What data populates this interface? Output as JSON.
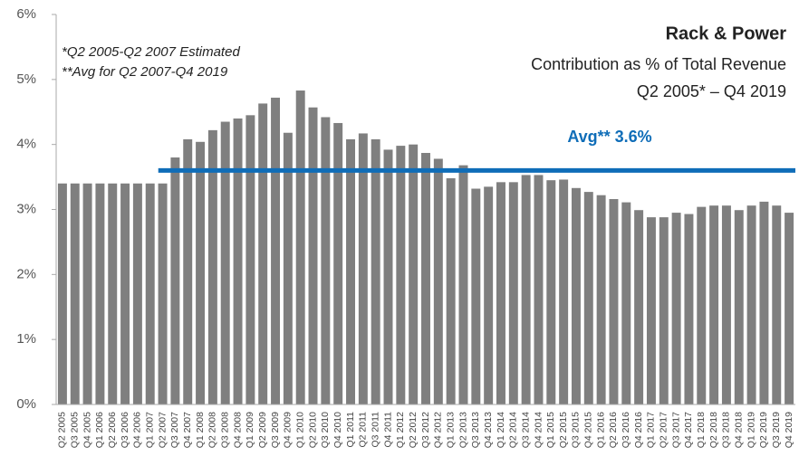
{
  "chart_data": {
    "type": "bar",
    "title": "Rack & Power",
    "subtitle": [
      "Contribution as % of Total Revenue",
      "Q2 2005* – Q4 2019"
    ],
    "annotations": [
      "*Q2 2005-Q2 2007 Estimated",
      "**Avg for Q2 2007-Q4 2019"
    ],
    "categories": [
      "Q2 2005",
      "Q3 2005",
      "Q4 2005",
      "Q1 2006",
      "Q2 2006",
      "Q3 2006",
      "Q4 2006",
      "Q1 2007",
      "Q2 2007",
      "Q3 2007",
      "Q4 2007",
      "Q1 2008",
      "Q2 2008",
      "Q3 2008",
      "Q4 2008",
      "Q1 2009",
      "Q2 2009",
      "Q3 2009",
      "Q4 2009",
      "Q1 2010",
      "Q2 2010",
      "Q3 2010",
      "Q4 2010",
      "Q1 2011",
      "Q2 2011",
      "Q3 2011",
      "Q4 2011",
      "Q1 2012",
      "Q2 2012",
      "Q3 2012",
      "Q4 2012",
      "Q1 2013",
      "Q2 2013",
      "Q3 2013",
      "Q4 2013",
      "Q1 2014",
      "Q2 2014",
      "Q3 2014",
      "Q4 2014",
      "Q1 2015",
      "Q2 2015",
      "Q3 2015",
      "Q4 2015",
      "Q1 2016",
      "Q2 2016",
      "Q3 2016",
      "Q4 2016",
      "Q1 2017",
      "Q2 2017",
      "Q3 2017",
      "Q4 2017",
      "Q1 2018",
      "Q2 2018",
      "Q3 2018",
      "Q4 2018",
      "Q1 2019",
      "Q2 2019",
      "Q3 2019",
      "Q4 2019"
    ],
    "values": [
      3.4,
      3.4,
      3.4,
      3.4,
      3.4,
      3.4,
      3.4,
      3.4,
      3.4,
      3.8,
      4.08,
      4.04,
      4.22,
      4.35,
      4.4,
      4.45,
      4.63,
      4.72,
      4.18,
      4.83,
      4.57,
      4.42,
      4.33,
      4.08,
      4.17,
      4.08,
      3.92,
      3.98,
      4.0,
      3.87,
      3.78,
      3.48,
      3.68,
      3.32,
      3.35,
      3.42,
      3.42,
      3.53,
      3.53,
      3.45,
      3.46,
      3.33,
      3.27,
      3.22,
      3.16,
      3.11,
      2.99,
      2.88,
      2.88,
      2.95,
      2.93,
      3.04,
      3.06,
      3.06,
      2.99,
      3.06,
      3.12,
      3.06,
      2.95
    ],
    "color": "#7f7f7f",
    "average": {
      "value": 3.6,
      "label": "Avg** 3.6%",
      "color": "#0f6db8",
      "range": [
        "Q2 2007",
        "Q4 2019"
      ]
    },
    "ylim": [
      0,
      6
    ],
    "yticks": [
      {
        "value": 0,
        "label": "0%"
      },
      {
        "value": 1,
        "label": "1%"
      },
      {
        "value": 2,
        "label": "2%"
      },
      {
        "value": 3,
        "label": "3%"
      },
      {
        "value": 4,
        "label": "4%"
      },
      {
        "value": 5,
        "label": "5%"
      },
      {
        "value": 6,
        "label": "6%"
      }
    ],
    "grid": false
  }
}
